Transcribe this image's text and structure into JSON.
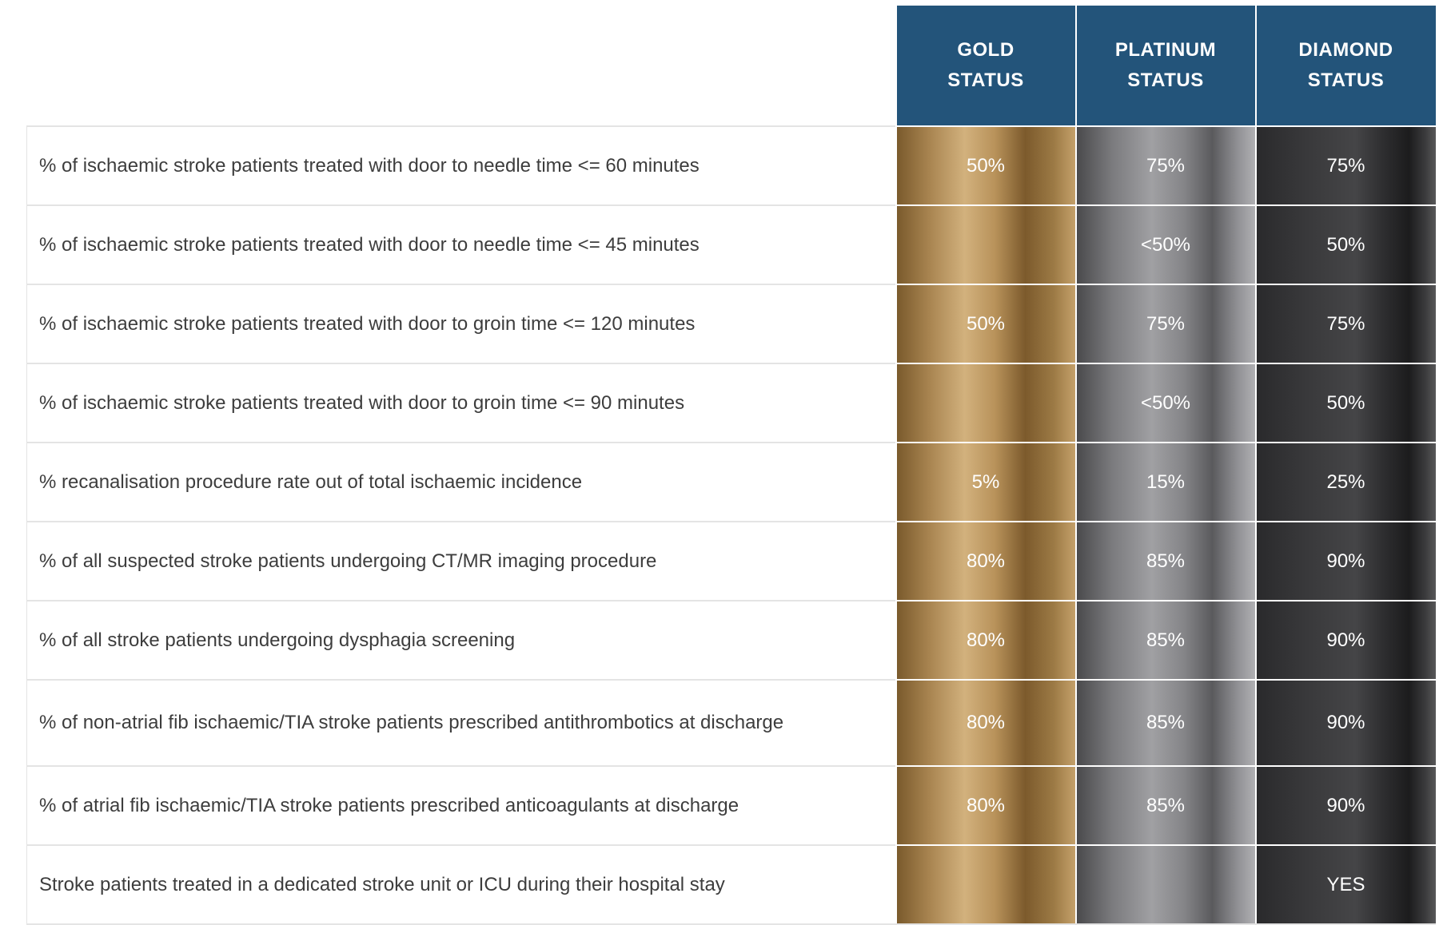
{
  "tiers": [
    {
      "line1": "GOLD",
      "line2": "STATUS"
    },
    {
      "line1": "PLATINUM",
      "line2": "STATUS"
    },
    {
      "line1": "DIAMOND",
      "line2": "STATUS"
    }
  ],
  "rows": [
    {
      "label": "% of ischaemic stroke patients treated with door to needle time <= 60 minutes",
      "gold": "50%",
      "platinum": "75%",
      "diamond": "75%"
    },
    {
      "label": "% of ischaemic stroke patients treated with door to needle time <= 45 minutes",
      "gold": "",
      "platinum": "<50%",
      "diamond": "50%"
    },
    {
      "label": "% of ischaemic stroke patients treated with door to groin time <= 120 minutes",
      "gold": "50%",
      "platinum": "75%",
      "diamond": "75%"
    },
    {
      "label": "% of ischaemic stroke patients treated with door to groin time <= 90 minutes",
      "gold": "",
      "platinum": "<50%",
      "diamond": "50%"
    },
    {
      "label": "% recanalisation procedure rate out of total ischaemic incidence",
      "gold": "5%",
      "platinum": "15%",
      "diamond": "25%"
    },
    {
      "label": "% of all suspected stroke patients undergoing CT/MR imaging procedure",
      "gold": "80%",
      "platinum": "85%",
      "diamond": "90%"
    },
    {
      "label": "% of all stroke patients undergoing dysphagia screening",
      "gold": "80%",
      "platinum": "85%",
      "diamond": "90%"
    },
    {
      "label": "% of non-atrial fib ischaemic/TIA stroke patients prescribed antithrombotics at discharge",
      "gold": "80%",
      "platinum": "85%",
      "diamond": "90%"
    },
    {
      "label": "% of atrial fib ischaemic/TIA stroke patients prescribed anticoagulants at discharge",
      "gold": "80%",
      "platinum": "85%",
      "diamond": "90%"
    },
    {
      "label": "Stroke patients treated in a dedicated stroke unit or ICU during their hospital stay",
      "gold": "",
      "platinum": "",
      "diamond": "YES"
    }
  ]
}
